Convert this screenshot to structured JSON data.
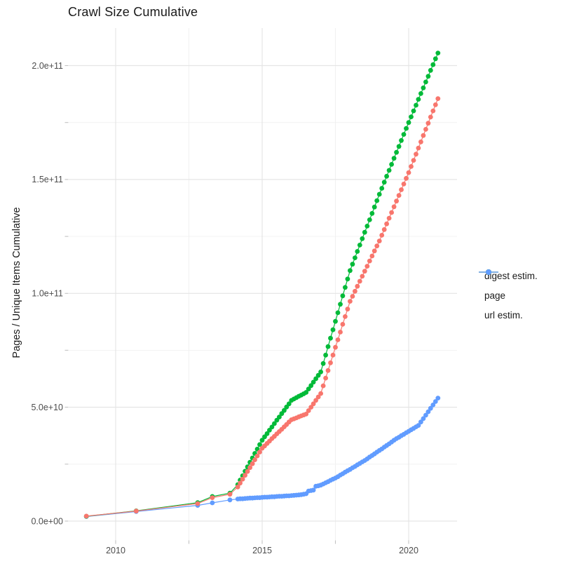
{
  "title": "Crawl Size Cumulative",
  "y_axis": {
    "label": "Pages / Unique Items Cumulative",
    "ticks": [
      "0.0e+00",
      "5.0e+10",
      "1.0e+11",
      "1.5e+11",
      "2.0e+11"
    ],
    "tick_values_billions": [
      0,
      50,
      100,
      150,
      200
    ],
    "minor_values_billions": [
      25,
      75,
      125,
      175
    ]
  },
  "x_axis": {
    "ticks": [
      "2010",
      "2015",
      "2020"
    ],
    "tick_values": [
      2010,
      2015,
      2020
    ],
    "minor_values": [
      2012.5,
      2017.5
    ]
  },
  "legend": {
    "items": [
      {
        "label": "digest estim.",
        "color": "#F8766D"
      },
      {
        "label": "page",
        "color": "#00BA38"
      },
      {
        "label": "url estim.",
        "color": "#619CFF"
      }
    ]
  },
  "colors": {
    "digest_estim": "#F8766D",
    "page": "#00BA38",
    "url_estim": "#619CFF",
    "grid_major": "#E5E5E5",
    "grid_minor": "#F0F0F0",
    "tick_mark": "#C2C2C2",
    "tick_label": "#4D4D4D"
  },
  "chart_data": {
    "type": "scatter",
    "title": "Crawl Size Cumulative",
    "xlabel": "",
    "ylabel": "Pages / Unique Items Cumulative",
    "value_unit": "billions (1e9 items)",
    "xlim": [
      2008.4,
      2022.0
    ],
    "ylim_billions": [
      0,
      215
    ],
    "grid": true,
    "legend_position": "right-middle",
    "x_years": [
      2009.0,
      2010.7,
      2012.8,
      2013.3,
      2013.9,
      2014.167,
      2014.25,
      2014.333,
      2014.417,
      2014.5,
      2014.583,
      2014.667,
      2014.75,
      2014.833,
      2014.917,
      2015.0,
      2015.083,
      2015.167,
      2015.25,
      2015.333,
      2015.417,
      2015.5,
      2015.583,
      2015.667,
      2015.75,
      2015.833,
      2015.917,
      2016.0,
      2016.083,
      2016.167,
      2016.25,
      2016.333,
      2016.417,
      2016.5,
      2016.583,
      2016.667,
      2016.75,
      2016.833,
      2016.917,
      2017.0,
      2017.083,
      2017.167,
      2017.25,
      2017.333,
      2017.417,
      2017.5,
      2017.583,
      2017.667,
      2017.75,
      2017.833,
      2017.917,
      2018.0,
      2018.083,
      2018.167,
      2018.25,
      2018.333,
      2018.417,
      2018.5,
      2018.583,
      2018.667,
      2018.75,
      2018.833,
      2018.917,
      2019.0,
      2019.083,
      2019.167,
      2019.25,
      2019.333,
      2019.417,
      2019.5,
      2019.583,
      2019.667,
      2019.75,
      2019.833,
      2019.917,
      2020.0,
      2020.083,
      2020.167,
      2020.25,
      2020.333,
      2020.417,
      2020.5,
      2020.583,
      2020.667,
      2020.75,
      2020.833,
      2020.917,
      2021.0
    ],
    "series": [
      {
        "name": "digest estim.",
        "color": "#F8766D",
        "values_billions": [
          2.2,
          4.4,
          7.7,
          10.3,
          11.8,
          15.0,
          16.7,
          18.4,
          20.1,
          21.8,
          23.5,
          25.2,
          26.9,
          28.6,
          30.3,
          32.0,
          33.0,
          34.1,
          35.1,
          36.2,
          37.2,
          38.3,
          39.3,
          40.3,
          41.4,
          42.4,
          43.5,
          44.5,
          44.9,
          45.3,
          45.8,
          46.2,
          46.6,
          47.0,
          48.5,
          50.0,
          51.5,
          53.0,
          54.5,
          56.0,
          59.4,
          62.8,
          66.1,
          69.5,
          72.9,
          76.3,
          79.6,
          83.0,
          86.4,
          89.8,
          93.1,
          96.5,
          98.7,
          100.9,
          103.1,
          105.3,
          107.5,
          109.7,
          111.9,
          114.2,
          116.4,
          118.6,
          120.8,
          123.0,
          125.5,
          128.0,
          130.5,
          133.0,
          135.5,
          138.0,
          140.5,
          143.0,
          145.5,
          148.0,
          150.5,
          153.0,
          155.7,
          158.4,
          161.1,
          163.8,
          166.5,
          169.3,
          172.0,
          174.7,
          177.4,
          180.1,
          182.8,
          185.5
        ]
      },
      {
        "name": "page",
        "color": "#00BA38",
        "values_billions": [
          2.1,
          4.5,
          8.1,
          10.8,
          12.3,
          16.0,
          18.0,
          19.9,
          21.9,
          23.8,
          25.8,
          27.7,
          29.7,
          31.6,
          33.6,
          35.5,
          37.0,
          38.4,
          39.9,
          41.3,
          42.8,
          44.3,
          45.7,
          47.2,
          48.6,
          50.1,
          51.5,
          53.0,
          53.6,
          54.2,
          54.8,
          55.3,
          55.9,
          56.5,
          58.0,
          59.5,
          61.0,
          62.5,
          64.0,
          65.5,
          69.2,
          72.9,
          76.6,
          80.3,
          84.0,
          87.7,
          91.5,
          95.2,
          98.9,
          102.6,
          106.3,
          110.0,
          112.8,
          115.6,
          118.4,
          121.2,
          124.0,
          126.8,
          129.5,
          132.3,
          135.1,
          137.9,
          140.7,
          143.5,
          146.1,
          148.8,
          151.4,
          154.0,
          156.6,
          159.3,
          161.9,
          164.5,
          167.1,
          169.8,
          172.4,
          175.0,
          177.5,
          180.1,
          182.6,
          185.2,
          187.7,
          190.2,
          192.8,
          195.3,
          197.9,
          200.4,
          203.0,
          205.5
        ]
      },
      {
        "name": "url estim.",
        "color": "#619CFF",
        "values_billions": [
          2.0,
          4.2,
          6.9,
          8.0,
          9.3,
          9.7,
          9.8,
          9.8,
          9.9,
          10.0,
          10.1,
          10.1,
          10.2,
          10.3,
          10.3,
          10.4,
          10.5,
          10.5,
          10.6,
          10.7,
          10.7,
          10.8,
          10.9,
          10.9,
          11.0,
          11.1,
          11.1,
          11.2,
          11.3,
          11.4,
          11.5,
          11.6,
          11.8,
          12.0,
          13.2,
          13.4,
          13.6,
          15.3,
          15.5,
          15.8,
          16.3,
          16.8,
          17.3,
          17.9,
          18.4,
          18.9,
          19.5,
          20.2,
          20.8,
          21.5,
          22.1,
          22.7,
          23.4,
          24.0,
          24.7,
          25.3,
          26.0,
          26.6,
          27.3,
          28.1,
          28.8,
          29.5,
          30.3,
          31.0,
          31.7,
          32.5,
          33.2,
          33.9,
          34.7,
          35.5,
          36.2,
          36.8,
          37.5,
          38.1,
          38.8,
          39.4,
          40.1,
          40.7,
          41.4,
          42.0,
          43.5,
          45.0,
          46.5,
          48.0,
          49.5,
          51.0,
          52.5,
          54.0
        ]
      }
    ]
  }
}
